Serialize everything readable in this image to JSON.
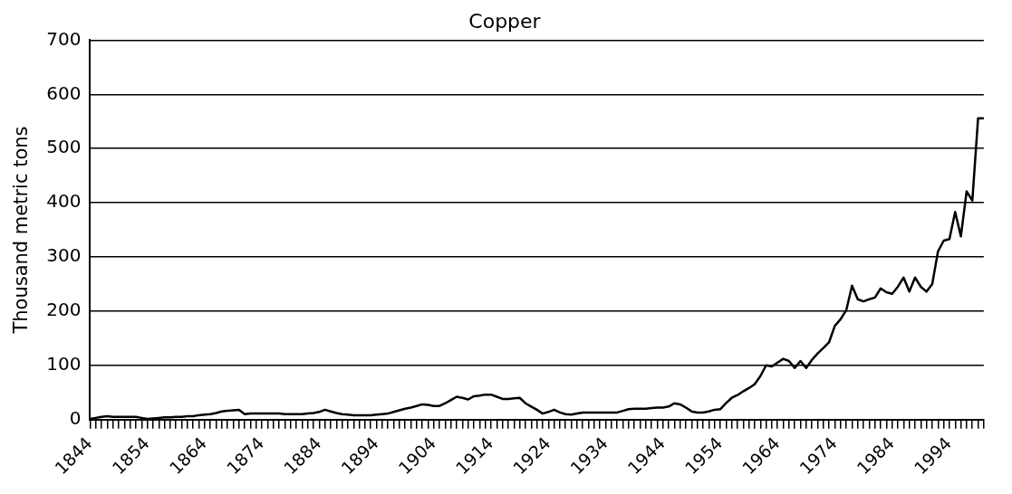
{
  "chart_data": {
    "type": "line",
    "title": "Copper",
    "ylabel": "Thousand metric tons",
    "categories": [
      "1844",
      null,
      null,
      null,
      null,
      null,
      null,
      null,
      null,
      null,
      "1854",
      null,
      null,
      null,
      null,
      null,
      null,
      null,
      null,
      null,
      "1864",
      null,
      null,
      null,
      null,
      null,
      null,
      null,
      null,
      null,
      "1874",
      null,
      null,
      null,
      null,
      null,
      null,
      null,
      null,
      null,
      "1884",
      null,
      null,
      null,
      null,
      null,
      null,
      null,
      null,
      null,
      "1894",
      null,
      null,
      null,
      null,
      null,
      null,
      null,
      null,
      null,
      "1904",
      null,
      null,
      null,
      null,
      null,
      null,
      null,
      null,
      null,
      "1914",
      null,
      null,
      null,
      null,
      null,
      null,
      null,
      null,
      null,
      "1924",
      null,
      null,
      null,
      null,
      null,
      null,
      null,
      null,
      null,
      "1934",
      null,
      null,
      null,
      null,
      null,
      null,
      null,
      null,
      null,
      "1944",
      null,
      null,
      null,
      null,
      null,
      null,
      null,
      null,
      null,
      "1954",
      null,
      null,
      null,
      null,
      null,
      null,
      null,
      null,
      null,
      "1964",
      null,
      null,
      null,
      null,
      null,
      null,
      null,
      null,
      null,
      "1974",
      null,
      null,
      null,
      null,
      null,
      null,
      null,
      null,
      null,
      "1984",
      null,
      null,
      null,
      null,
      null,
      null,
      null,
      null,
      null,
      "1994",
      null,
      null,
      null,
      null,
      null,
      null
    ],
    "series": [
      {
        "color": "#000000",
        "values": [
          1,
          3,
          5,
          6,
          5,
          5,
          5,
          5,
          5,
          3,
          1,
          2,
          3,
          4,
          4,
          5,
          5,
          6,
          6,
          8,
          9,
          10,
          12,
          15,
          16,
          17,
          18,
          10,
          11,
          11,
          11,
          11,
          11,
          11,
          10,
          10,
          10,
          10,
          11,
          12,
          14,
          18,
          15,
          12,
          10,
          9,
          8,
          8,
          8,
          8,
          9,
          10,
          11,
          14,
          17,
          20,
          22,
          25,
          28,
          27,
          25,
          25,
          30,
          36,
          42,
          40,
          37,
          43,
          44,
          46,
          46,
          42,
          38,
          38,
          39,
          40,
          30,
          24,
          18,
          11,
          14,
          18,
          13,
          10,
          9,
          11,
          13,
          13,
          13,
          13,
          13,
          13,
          13,
          16,
          19,
          20,
          20,
          20,
          21,
          22,
          22,
          24,
          30,
          28,
          22,
          15,
          13,
          13,
          15,
          18,
          19,
          30,
          40,
          45,
          52,
          58,
          65,
          80,
          100,
          98,
          105,
          112,
          108,
          95,
          108,
          95,
          110,
          122,
          132,
          143,
          173,
          185,
          202,
          247,
          222,
          218,
          222,
          225,
          242,
          235,
          232,
          245,
          262,
          236,
          262,
          245,
          236,
          250,
          310,
          330,
          333,
          383,
          338,
          421,
          404,
          556,
          556
        ]
      }
    ],
    "ylim": [
      0,
      700
    ],
    "yticks": [
      0,
      100,
      200,
      300,
      400,
      500,
      600,
      700
    ],
    "grid": "y",
    "legend": false
  }
}
